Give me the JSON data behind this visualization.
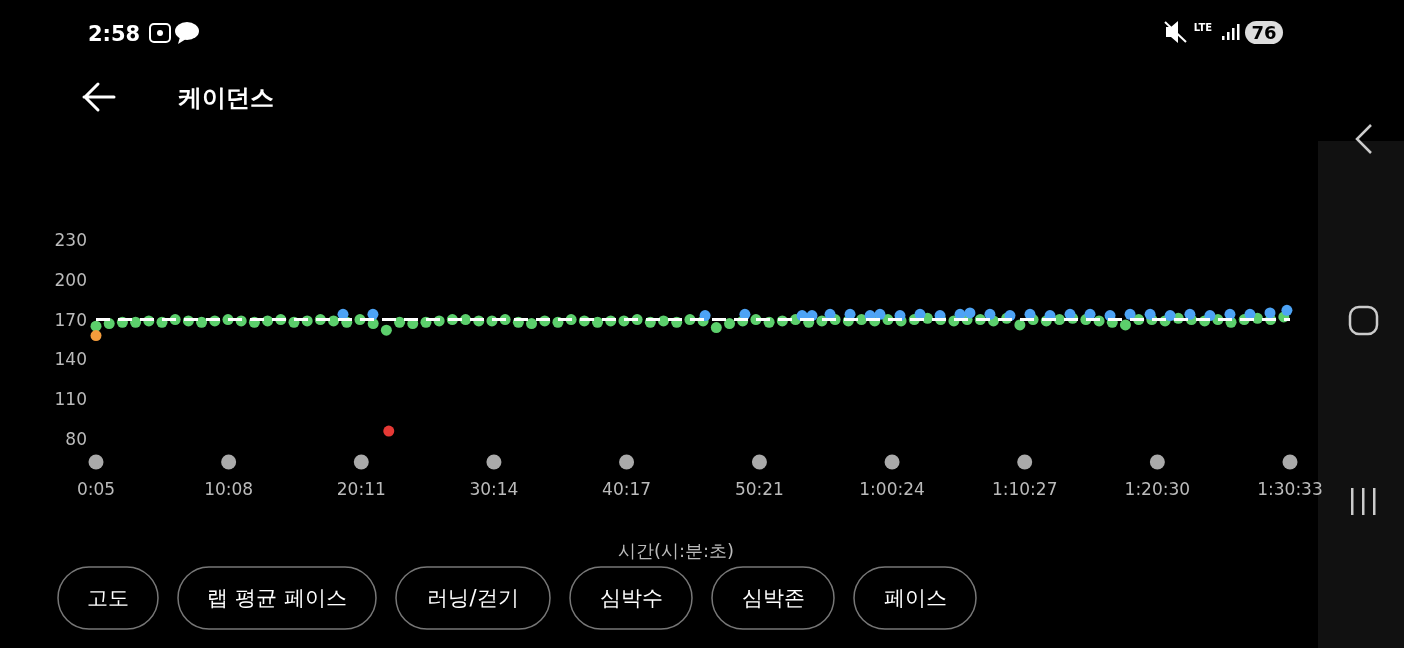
{
  "chart_data": {
    "type": "scatter",
    "title": "케이던스",
    "xlabel": "시간(시:분:초)",
    "annotations": [
      "2:58",
      "LTE",
      "76",
      "고도",
      "랩 평균 페이스",
      "러닝/걷기",
      "심박수",
      "심박존",
      "페이스"
    ],
    "xlim": [
      5,
      5433
    ],
    "ylim": [
      80,
      230
    ],
    "xticks": [
      {
        "value": 5,
        "label": "0:05"
      },
      {
        "value": 608,
        "label": "10:08"
      },
      {
        "value": 1211,
        "label": "20:11"
      },
      {
        "value": 1814,
        "label": "30:14"
      },
      {
        "value": 2417,
        "label": "40:17"
      },
      {
        "value": 3021,
        "label": "50:21"
      },
      {
        "value": 3624,
        "label": "1:00:24"
      },
      {
        "value": 4227,
        "label": "1:10:27"
      },
      {
        "value": 4830,
        "label": "1:20:30"
      },
      {
        "value": 5433,
        "label": "1:30:33"
      }
    ],
    "yticks": [
      80,
      110,
      140,
      170,
      200,
      230
    ],
    "grid": false,
    "marker": "circle",
    "ref_lines": [
      {
        "axis": "y",
        "value": 170,
        "color": "#ffffff",
        "line_style": "dashed"
      }
    ],
    "series": [
      {
        "color": "#5ccf6c",
        "x": [
          5,
          65,
          125,
          185,
          245,
          305,
          365,
          425,
          485,
          545,
          605,
          665,
          725,
          785,
          845,
          905,
          965,
          1025,
          1085,
          1145,
          1205,
          1265,
          1325,
          1385,
          1445,
          1505,
          1565,
          1625,
          1685,
          1745,
          1805,
          1865,
          1925,
          1985,
          2045,
          2105,
          2165,
          2225,
          2285,
          2345,
          2405,
          2465,
          2525,
          2585,
          2645,
          2705,
          2765,
          2825,
          2885,
          2945,
          3005,
          3065,
          3125,
          3185,
          3245,
          3305,
          3365,
          3425,
          3485,
          3545,
          3605,
          3665,
          3725,
          3785,
          3845,
          3905,
          3965,
          4025,
          4085,
          4145,
          4205,
          4265,
          4325,
          4385,
          4445,
          4505,
          4565,
          4625,
          4685,
          4745,
          4805,
          4865,
          4925,
          4985,
          5045,
          5105,
          5165,
          5225,
          5285,
          5345,
          5405
        ],
        "values": [
          165,
          167,
          168,
          168,
          169,
          168,
          170,
          169,
          168,
          169,
          170,
          169,
          168,
          169,
          170,
          168,
          169,
          170,
          169,
          168,
          170,
          167,
          162,
          168,
          167,
          168,
          169,
          170,
          170,
          169,
          169,
          170,
          168,
          167,
          169,
          168,
          170,
          169,
          168,
          169,
          169,
          170,
          168,
          169,
          168,
          170,
          169,
          164,
          167,
          169,
          170,
          168,
          169,
          170,
          168,
          169,
          170,
          169,
          170,
          169,
          170,
          169,
          170,
          171,
          170,
          169,
          170,
          170,
          169,
          171,
          166,
          170,
          169,
          170,
          171,
          170,
          169,
          168,
          166,
          170,
          170,
          169,
          171,
          170,
          169,
          170,
          168,
          170,
          171,
          170,
          172
        ]
      },
      {
        "color": "#4da3f5",
        "x": [
          1128,
          1264,
          2774,
          2955,
          3215,
          3260,
          3342,
          3433,
          3524,
          3569,
          3660,
          3751,
          3842,
          3933,
          3978,
          4069,
          4160,
          4251,
          4342,
          4433,
          4524,
          4615,
          4706,
          4797,
          4888,
          4978,
          5069,
          5160,
          5251,
          5342,
          5419
        ],
        "values": [
          174,
          174,
          173,
          174,
          173,
          173,
          174,
          174,
          173,
          174,
          173,
          174,
          173,
          174,
          175,
          174,
          173,
          174,
          173,
          174,
          174,
          173,
          174,
          174,
          173,
          174,
          173,
          174,
          174,
          175,
          177
        ]
      },
      {
        "color": "#f39c3c",
        "x": [
          5
        ],
        "values": [
          158
        ]
      },
      {
        "color": "#e53935",
        "x": [
          1336
        ],
        "values": [
          86
        ]
      }
    ]
  }
}
